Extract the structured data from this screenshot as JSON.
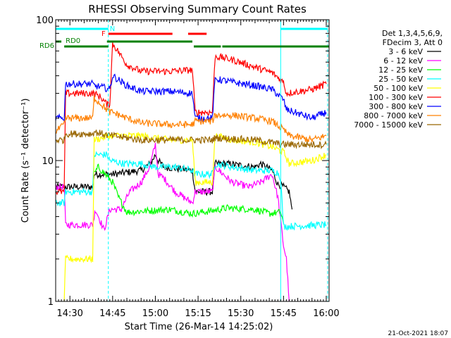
{
  "chart_data": {
    "type": "line",
    "title": "RHESSI Observing Summary Count Rates",
    "xlabel": "Start Time (26-Mar-14 14:25:02)",
    "ylabel": "Count Rate (s⁻¹ detector⁻¹)",
    "x_unit": "minutes after 14:25:02",
    "xlim": [
      0,
      96
    ],
    "ylim": [
      1,
      100
    ],
    "yscale": "log",
    "x_ticks": [
      {
        "x": 5,
        "label": "14:30"
      },
      {
        "x": 20,
        "label": "14:45"
      },
      {
        "x": 35,
        "label": "15:00"
      },
      {
        "x": 50,
        "label": "15:15"
      },
      {
        "x": 65,
        "label": "15:30"
      },
      {
        "x": 80,
        "label": "15:45"
      },
      {
        "x": 95,
        "label": "16:00"
      }
    ],
    "y_ticks": [
      {
        "y": 1,
        "label": "1"
      },
      {
        "y": 10,
        "label": "10"
      },
      {
        "y": 100,
        "label": "100"
      }
    ],
    "legend_header": [
      "Det 1,3,4,5,6,9,",
      "FDecim 3, Att 0"
    ],
    "legend_position": "right",
    "series": [
      {
        "name": "3 - 6 keV",
        "color": "#000000",
        "points": [
          [
            0,
            6.5
          ],
          [
            3,
            6.5
          ],
          [
            3.5,
            6.5
          ],
          [
            13,
            6.5
          ],
          [
            13.5,
            8
          ],
          [
            19,
            8
          ],
          [
            20,
            8
          ],
          [
            30,
            8.5
          ],
          [
            33,
            9.5
          ],
          [
            34,
            10
          ],
          [
            35,
            11
          ],
          [
            36,
            10
          ],
          [
            38,
            9
          ],
          [
            48,
            8.5
          ],
          [
            49,
            6
          ],
          [
            55,
            6
          ],
          [
            56,
            9.5
          ],
          [
            60,
            9.5
          ],
          [
            70,
            9
          ],
          [
            72,
            9.5
          ],
          [
            76,
            8.5
          ],
          [
            78,
            6.8
          ],
          [
            80,
            6.5
          ],
          [
            82,
            6
          ],
          [
            83,
            4.5
          ]
        ]
      },
      {
        "name": "6 - 12 keV",
        "color": "#ff00ff",
        "points": [
          [
            0,
            6.5
          ],
          [
            3,
            6.5
          ],
          [
            3.5,
            3.5
          ],
          [
            13,
            3.5
          ],
          [
            14,
            4.5
          ],
          [
            17,
            3.2
          ],
          [
            19,
            4.5
          ],
          [
            23,
            4.5
          ],
          [
            26,
            6
          ],
          [
            30,
            7
          ],
          [
            33,
            9
          ],
          [
            35,
            13
          ],
          [
            36,
            8
          ],
          [
            38,
            7.5
          ],
          [
            42,
            6
          ],
          [
            48,
            5
          ],
          [
            49,
            6
          ],
          [
            55,
            6
          ],
          [
            56,
            9
          ],
          [
            62,
            7
          ],
          [
            68,
            6.5
          ],
          [
            72,
            7
          ],
          [
            76,
            8
          ],
          [
            78,
            5.5
          ],
          [
            80,
            2.5
          ],
          [
            81,
            2
          ],
          [
            82,
            1
          ]
        ]
      },
      {
        "name": "12 - 25 keV",
        "color": "#00ff00",
        "points": [
          [
            13.5,
            8
          ],
          [
            15,
            9
          ],
          [
            20,
            7
          ],
          [
            22,
            5.5
          ],
          [
            25,
            4.3
          ],
          [
            40,
            4.5
          ],
          [
            48,
            4.2
          ],
          [
            55,
            4.4
          ],
          [
            60,
            4.6
          ],
          [
            70,
            4.5
          ],
          [
            75,
            4.2
          ],
          [
            79,
            4.3
          ],
          [
            80,
            3.6
          ]
        ]
      },
      {
        "name": "25 - 50 keV",
        "color": "#00ffff",
        "points": [
          [
            0,
            5
          ],
          [
            3,
            5
          ],
          [
            3.5,
            6
          ],
          [
            13,
            6
          ],
          [
            13.5,
            11
          ],
          [
            18,
            11
          ],
          [
            19,
            10
          ],
          [
            24,
            9.5
          ],
          [
            30,
            9.5
          ],
          [
            35,
            9
          ],
          [
            42,
            9
          ],
          [
            48,
            8.5
          ],
          [
            49,
            8
          ],
          [
            55,
            8
          ],
          [
            56,
            9.5
          ],
          [
            62,
            9
          ],
          [
            70,
            8.5
          ],
          [
            76,
            8.5
          ],
          [
            78,
            8.2
          ],
          [
            79,
            7.5
          ],
          [
            80,
            3.4
          ],
          [
            95,
            3.5
          ]
        ]
      },
      {
        "name": "50 - 100 keV",
        "color": "#ffff00",
        "points": [
          [
            3,
            1
          ],
          [
            3.5,
            2
          ],
          [
            13,
            2
          ],
          [
            13.5,
            14
          ],
          [
            19,
            15
          ],
          [
            20,
            15
          ],
          [
            24,
            15
          ],
          [
            30,
            15
          ],
          [
            40,
            14
          ],
          [
            48,
            14
          ],
          [
            49,
            7
          ],
          [
            55,
            7
          ],
          [
            56,
            15
          ],
          [
            62,
            14
          ],
          [
            70,
            13.5
          ],
          [
            76,
            12.5
          ],
          [
            80,
            11.5
          ],
          [
            82,
            9.5
          ],
          [
            90,
            10
          ],
          [
            95,
            11
          ]
        ]
      },
      {
        "name": "100 - 300 keV",
        "color": "#ff0000",
        "points": [
          [
            0,
            6
          ],
          [
            3,
            6
          ],
          [
            3.5,
            30
          ],
          [
            13,
            30
          ],
          [
            13.5,
            30
          ],
          [
            16,
            28
          ],
          [
            18,
            25
          ],
          [
            19,
            25
          ],
          [
            20,
            68
          ],
          [
            25,
            48
          ],
          [
            30,
            43
          ],
          [
            40,
            43
          ],
          [
            48,
            44
          ],
          [
            49,
            22
          ],
          [
            55,
            22
          ],
          [
            56,
            55
          ],
          [
            62,
            52
          ],
          [
            70,
            46
          ],
          [
            76,
            42
          ],
          [
            80,
            36
          ],
          [
            81,
            30
          ],
          [
            90,
            32
          ],
          [
            95,
            35
          ]
        ]
      },
      {
        "name": "300 - 800 keV",
        "color": "#0000ff",
        "points": [
          [
            0,
            20
          ],
          [
            3,
            20
          ],
          [
            3.5,
            35
          ],
          [
            13,
            35
          ],
          [
            13.5,
            34
          ],
          [
            17,
            33
          ],
          [
            19,
            32
          ],
          [
            20,
            40
          ],
          [
            25,
            34
          ],
          [
            30,
            31
          ],
          [
            40,
            31
          ],
          [
            48,
            30
          ],
          [
            49,
            20
          ],
          [
            55,
            20
          ],
          [
            56,
            38
          ],
          [
            62,
            36
          ],
          [
            70,
            34
          ],
          [
            76,
            32
          ],
          [
            80,
            27
          ],
          [
            81,
            23
          ],
          [
            90,
            20
          ],
          [
            95,
            22
          ]
        ]
      },
      {
        "name": "800 - 7000 keV",
        "color": "#ff8000",
        "points": [
          [
            0,
            16
          ],
          [
            3,
            18
          ],
          [
            3.5,
            20
          ],
          [
            13,
            20
          ],
          [
            13.5,
            28
          ],
          [
            17,
            24
          ],
          [
            19,
            22
          ],
          [
            20,
            22
          ],
          [
            25,
            20
          ],
          [
            30,
            18.5
          ],
          [
            40,
            18
          ],
          [
            48,
            18
          ],
          [
            49,
            19
          ],
          [
            55,
            19
          ],
          [
            56,
            21
          ],
          [
            62,
            21
          ],
          [
            70,
            20
          ],
          [
            76,
            19
          ],
          [
            80,
            16.5
          ],
          [
            82,
            15
          ],
          [
            90,
            14
          ],
          [
            95,
            15
          ]
        ]
      },
      {
        "name": "7000 - 15000 keV",
        "color": "#996600",
        "points": [
          [
            0,
            14
          ],
          [
            3,
            14
          ],
          [
            3.5,
            15.5
          ],
          [
            13,
            15.5
          ],
          [
            13.5,
            16
          ],
          [
            19,
            15
          ],
          [
            20,
            15
          ],
          [
            30,
            14
          ],
          [
            48,
            14
          ],
          [
            49,
            14
          ],
          [
            55,
            14
          ],
          [
            56,
            14.5
          ],
          [
            70,
            14
          ],
          [
            80,
            13
          ],
          [
            95,
            13
          ]
        ]
      }
    ],
    "flag_bars": [
      {
        "label": "N",
        "color": "#00ffff",
        "level": 1,
        "segments": [
          [
            0,
            18.5
          ],
          [
            79,
            95.5
          ]
        ]
      },
      {
        "label": "F",
        "color": "#ff0000",
        "level": 2,
        "segments": [
          [
            18.5,
            41
          ],
          [
            46.5,
            53
          ]
        ]
      },
      {
        "label": "RD0",
        "color": "#008000",
        "level": 3,
        "segments": [
          [
            0,
            2
          ],
          [
            18,
            48
          ]
        ]
      },
      {
        "label": "RD6",
        "color": "#008000",
        "level": 4,
        "segments": [
          [
            3,
            18.5
          ],
          [
            48.5,
            58
          ],
          [
            58.5,
            96
          ]
        ]
      }
    ],
    "vertical_markers": [
      {
        "x": 18.5,
        "style": "dashed",
        "color": "#00ffff"
      },
      {
        "x": 79,
        "style": "solid",
        "color": "#00ffff"
      },
      {
        "x": 95.5,
        "style": "dashed",
        "color": "#00ffff"
      }
    ]
  },
  "footer_date": "21-Oct-2021 18:07"
}
